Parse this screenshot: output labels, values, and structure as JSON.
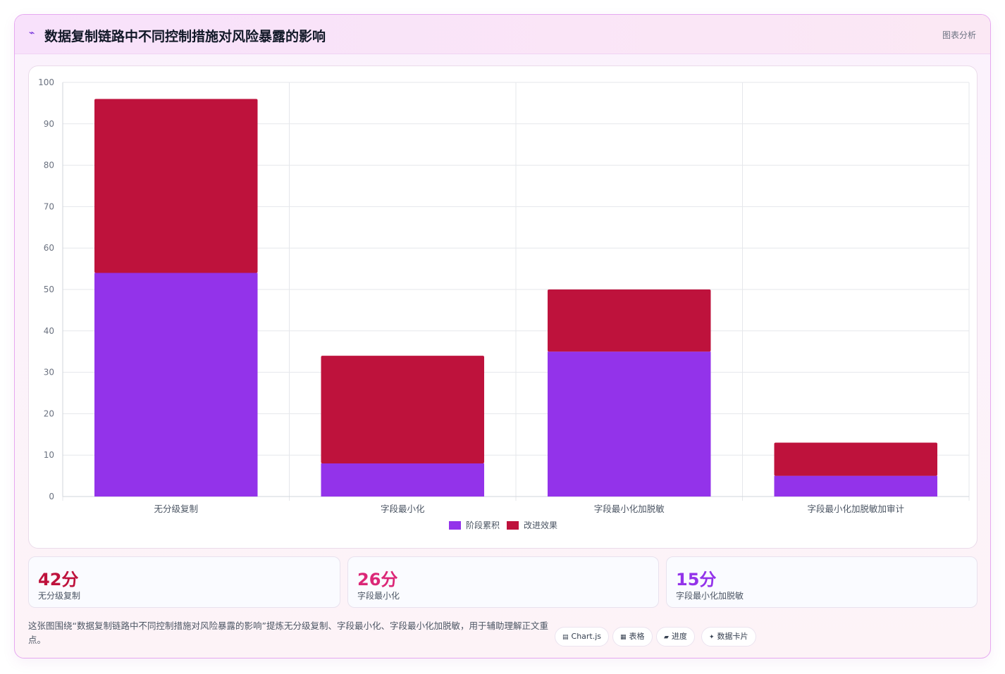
{
  "header": {
    "icon": "chart-line-icon",
    "title": "数据复制链路中不同控制措施对风险暴露的影响",
    "action_label": "图表分析"
  },
  "chart_data": {
    "type": "bar",
    "stacked": true,
    "categories": [
      "无分级复制",
      "字段最小化",
      "字段最小化加脱敏",
      "字段最小化加脱敏加审计"
    ],
    "series": [
      {
        "name": "阶段累积",
        "color": "#9333ea",
        "values": [
          54,
          8,
          35,
          5
        ]
      },
      {
        "name": "改进效果",
        "color": "#be123c",
        "values": [
          42,
          26,
          15,
          8
        ]
      }
    ],
    "ylim": [
      0,
      100
    ],
    "yticks": [
      0,
      10,
      20,
      30,
      40,
      50,
      60,
      70,
      80,
      90,
      100
    ],
    "grid": true,
    "legend_position": "bottom"
  },
  "stats": [
    {
      "value": "42分",
      "label": "无分级复制",
      "color": "#be123c"
    },
    {
      "value": "26分",
      "label": "字段最小化",
      "color": "#db2777"
    },
    {
      "value": "15分",
      "label": "字段最小化加脱敏",
      "color": "#9333ea"
    }
  ],
  "footer": {
    "description": "这张图围绕“数据复制链路中不同控制措施对风险暴露的影响”提炼无分级复制、字段最小化、字段最小化加脱敏，用于辅助理解正文重点。",
    "chips": [
      {
        "icon": "chart-icon",
        "glyph": "▤",
        "label": "Chart.js"
      },
      {
        "icon": "table-icon",
        "glyph": "▦",
        "label": "表格"
      },
      {
        "icon": "progress-icon",
        "glyph": "▰",
        "label": "进度"
      },
      {
        "icon": "sparkle-icon",
        "glyph": "✦",
        "label": "数据卡片"
      }
    ]
  }
}
